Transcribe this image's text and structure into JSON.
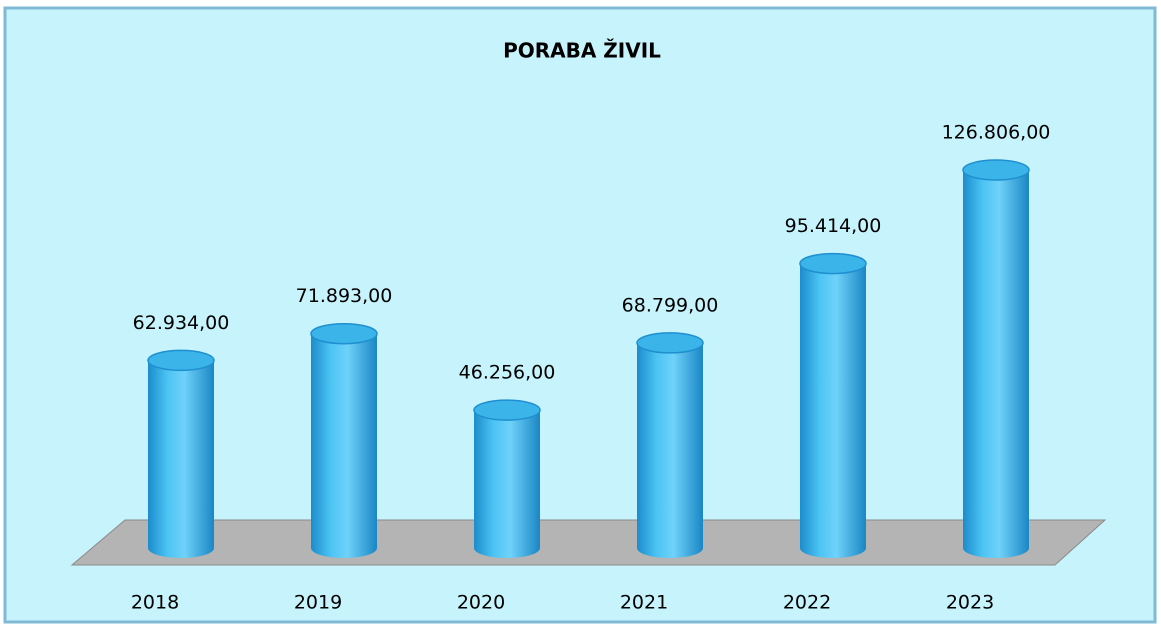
{
  "chart_data": {
    "type": "bar",
    "title": "PORABA ŽIVIL",
    "categories": [
      "2018",
      "2019",
      "2020",
      "2021",
      "2022",
      "2023"
    ],
    "values": [
      62934,
      71893,
      46256,
      68799,
      95414,
      126806
    ],
    "value_labels": [
      "62.934,00",
      "71.893,00",
      "46.256,00",
      "68.799,00",
      "95.414,00",
      "126.806,00"
    ],
    "color": "#3bb4ea"
  }
}
